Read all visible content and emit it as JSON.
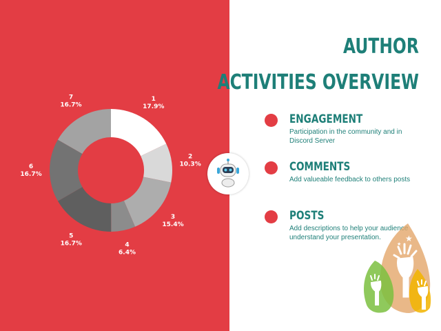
{
  "title": {
    "line1": "AUTHOR",
    "line2": "ACTIVITIES OVERVIEW"
  },
  "activities": [
    {
      "heading": "ENGAGEMENT",
      "description": "Participation in the community and in Discord Server"
    },
    {
      "heading": "COMMENTS",
      "description": "Add valueable feedback to others posts"
    },
    {
      "heading": "POSTS",
      "description": "Add descriptions to help your audience understand your presentation."
    }
  ],
  "colors": {
    "accent_red": "#e33d44",
    "teal": "#1e7f78"
  },
  "icons": [
    "robot-icon",
    "raised-hands-icon"
  ],
  "chart_data": {
    "type": "pie",
    "donut": true,
    "categories": [
      "1",
      "2",
      "3",
      "4",
      "5",
      "6",
      "7"
    ],
    "values": [
      17.9,
      10.3,
      15.4,
      6.4,
      16.7,
      16.7,
      16.7
    ],
    "labels": [
      "17.9%",
      "10.3%",
      "15.4%",
      "6.4%",
      "16.7%",
      "16.7%",
      "16.7%"
    ],
    "colors": [
      "#ffffff",
      "#d9d9d9",
      "#adadad",
      "#8c8c8c",
      "#5f5f5f",
      "#737373",
      "#a3a3a3"
    ]
  }
}
